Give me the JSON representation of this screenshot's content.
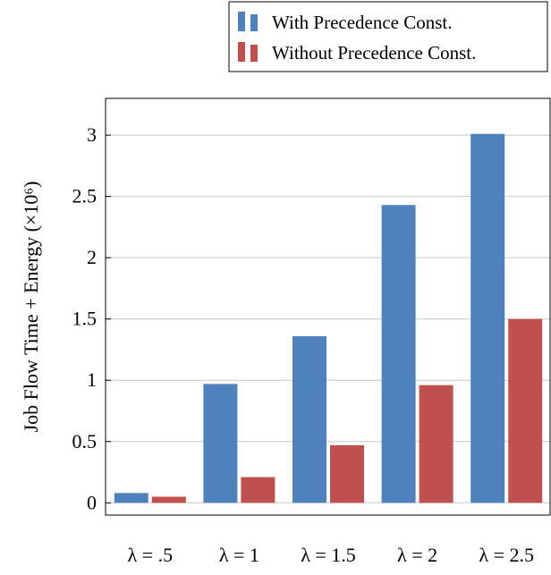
{
  "chart_data": {
    "type": "bar",
    "title": "",
    "xlabel": "",
    "ylabel": "Job Flow Time + Energy (×10⁶)",
    "categories": [
      "λ = .5",
      "λ = 1",
      "λ = 1.5",
      "λ = 2",
      "λ = 2.5"
    ],
    "series": [
      {
        "name": "With Precedence Const.",
        "color": "#4f81bd",
        "values": [
          0.08,
          0.97,
          1.36,
          2.43,
          3.01
        ]
      },
      {
        "name": "Without Precedence Const.",
        "color": "#c0504d",
        "values": [
          0.05,
          0.21,
          0.47,
          0.96,
          1.5
        ]
      }
    ],
    "ylim": [
      -0.1,
      3.3
    ],
    "yticks": [
      0,
      0.5,
      1,
      1.5,
      2,
      2.5,
      3
    ],
    "ytick_labels": [
      "0",
      "0.5",
      "1",
      "1.5",
      "2",
      "2.5",
      "3"
    ],
    "grid": "horizontal",
    "legend_position": "top-right"
  }
}
